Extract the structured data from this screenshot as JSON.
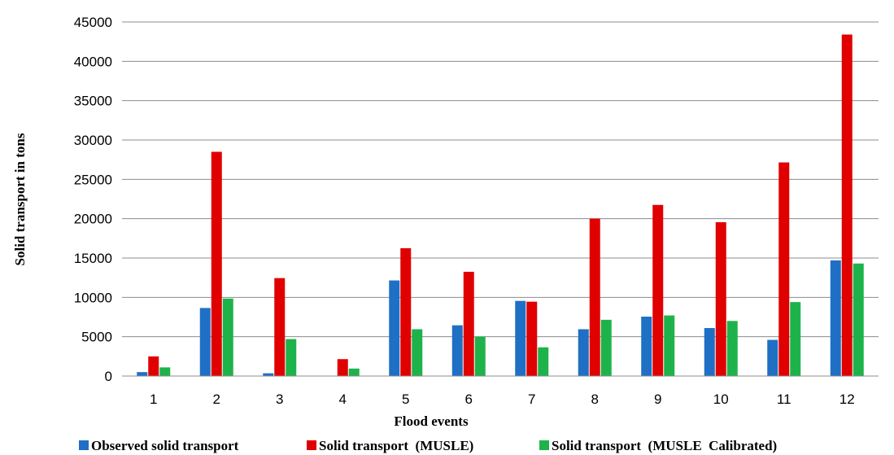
{
  "chart_data": {
    "type": "bar",
    "title": "",
    "xlabel": "Flood events",
    "ylabel": "Solid transport in tons",
    "ylim": [
      0,
      45000
    ],
    "yticks": [
      0,
      5000,
      10000,
      15000,
      20000,
      25000,
      30000,
      35000,
      40000,
      45000
    ],
    "categories": [
      "1",
      "2",
      "3",
      "4",
      "5",
      "6",
      "7",
      "8",
      "9",
      "10",
      "11",
      "12"
    ],
    "grid": true,
    "legend_position": "bottom",
    "series": [
      {
        "name": "Observed solid transport",
        "color": "#1f6fc5",
        "values": [
          500,
          8650,
          350,
          0,
          12150,
          6450,
          9550,
          5950,
          7550,
          6100,
          4600,
          14700
        ]
      },
      {
        "name": "Solid transport  (MUSLE)",
        "color": "#e00000",
        "values": [
          2500,
          28500,
          12450,
          2150,
          16250,
          13250,
          9450,
          20000,
          21750,
          19550,
          27150,
          43400
        ]
      },
      {
        "name": "Solid transport  (MUSLE  Calibrated)",
        "color": "#1db34a",
        "values": [
          1100,
          9850,
          4700,
          950,
          5950,
          5000,
          3650,
          7150,
          7700,
          7000,
          9400,
          14300
        ]
      }
    ]
  }
}
